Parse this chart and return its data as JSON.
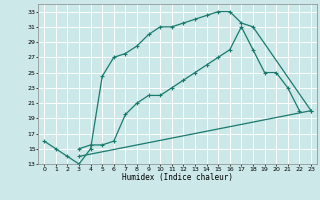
{
  "xlabel": "Humidex (Indice chaleur)",
  "bg_color": "#cce8e8",
  "grid_color": "#ffffff",
  "line_color": "#1a7a6e",
  "xlim": [
    -0.5,
    23.5
  ],
  "ylim": [
    13,
    34
  ],
  "xticks": [
    0,
    1,
    2,
    3,
    4,
    5,
    6,
    7,
    8,
    9,
    10,
    11,
    12,
    13,
    14,
    15,
    16,
    17,
    18,
    19,
    20,
    21,
    22,
    23
  ],
  "yticks": [
    13,
    15,
    17,
    19,
    21,
    23,
    25,
    27,
    29,
    31,
    33
  ],
  "line1_x": [
    0,
    1,
    2,
    3,
    4,
    5,
    6,
    7,
    8,
    9,
    10,
    11,
    12,
    13,
    14,
    15,
    16,
    17,
    18,
    23
  ],
  "line1_y": [
    16,
    15,
    14,
    13,
    15,
    24.5,
    27,
    27.5,
    28.5,
    30,
    31,
    31,
    31.5,
    32,
    32.5,
    33,
    33,
    31.5,
    31,
    20
  ],
  "line2_x": [
    3,
    4,
    5,
    6,
    7,
    8,
    9,
    10,
    11,
    12,
    13,
    14,
    15,
    16,
    17,
    18,
    19,
    20,
    21,
    22
  ],
  "line2_y": [
    15,
    15.5,
    15.5,
    16,
    19.5,
    21,
    22,
    22,
    23,
    24,
    25,
    26,
    27,
    28,
    31,
    28,
    25,
    25,
    23,
    20
  ],
  "line3_x": [
    3,
    23
  ],
  "line3_y": [
    14,
    20
  ]
}
